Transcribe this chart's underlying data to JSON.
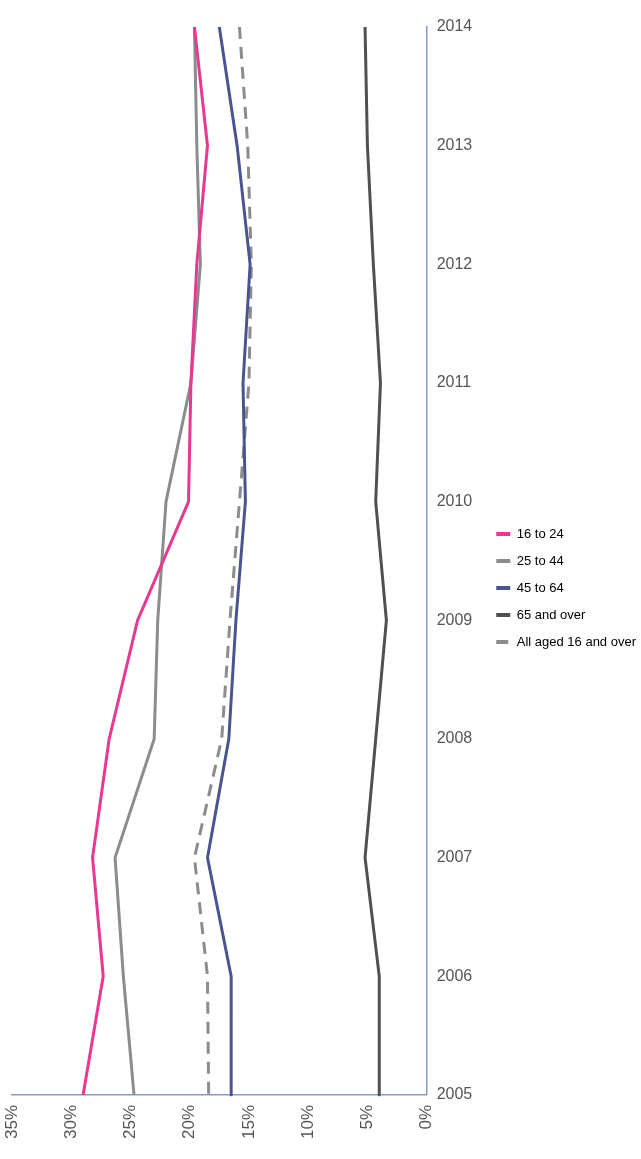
{
  "chart_data": {
    "type": "line",
    "categories": [
      "2014",
      "2013",
      "2012",
      "2011",
      "2010",
      "2009",
      "2008",
      "2007",
      "2006",
      "2005"
    ],
    "series": [
      {
        "name": "16 to 24",
        "color": "#e8388f",
        "values": [
          19.6,
          18.5,
          19.4,
          19.9,
          20.1,
          24.4,
          26.8,
          28.2,
          27.3,
          29.0
        ]
      },
      {
        "name": "25 to 44",
        "color": "#8c8c8c",
        "values": [
          19.6,
          19.4,
          19.1,
          19.9,
          22.0,
          22.7,
          23.0,
          26.3,
          25.6,
          24.7
        ]
      },
      {
        "name": "45 to 64",
        "color": "#4a5590",
        "values": [
          17.5,
          16.0,
          14.9,
          15.5,
          15.3,
          16.1,
          16.7,
          18.5,
          16.5,
          16.5
        ]
      },
      {
        "name": "65 and over",
        "color": "#505050",
        "values": [
          5.2,
          5.0,
          4.5,
          3.9,
          4.3,
          3.4,
          4.3,
          5.2,
          4.0,
          4.0
        ]
      },
      {
        "name": "All aged 16 and over",
        "color": "#8c8c8c",
        "line_style": "dashed",
        "values": [
          15.8,
          15.1,
          14.8,
          15.0,
          15.8,
          16.6,
          17.3,
          19.6,
          18.5,
          18.4
        ]
      }
    ],
    "orientation": "horizontal",
    "xlim": [
      35,
      0
    ],
    "xticks": [
      {
        "value": 35,
        "label": "35%"
      },
      {
        "value": 30,
        "label": "30%"
      },
      {
        "value": 25,
        "label": "25%"
      },
      {
        "value": 20,
        "label": "20%"
      },
      {
        "value": 15,
        "label": "15%"
      },
      {
        "value": 10,
        "label": "10%"
      },
      {
        "value": 5,
        "label": "5%"
      },
      {
        "value": 0,
        "label": "0%"
      }
    ],
    "grid": false,
    "legend": "right",
    "marker": "none",
    "line_style": "solid"
  }
}
